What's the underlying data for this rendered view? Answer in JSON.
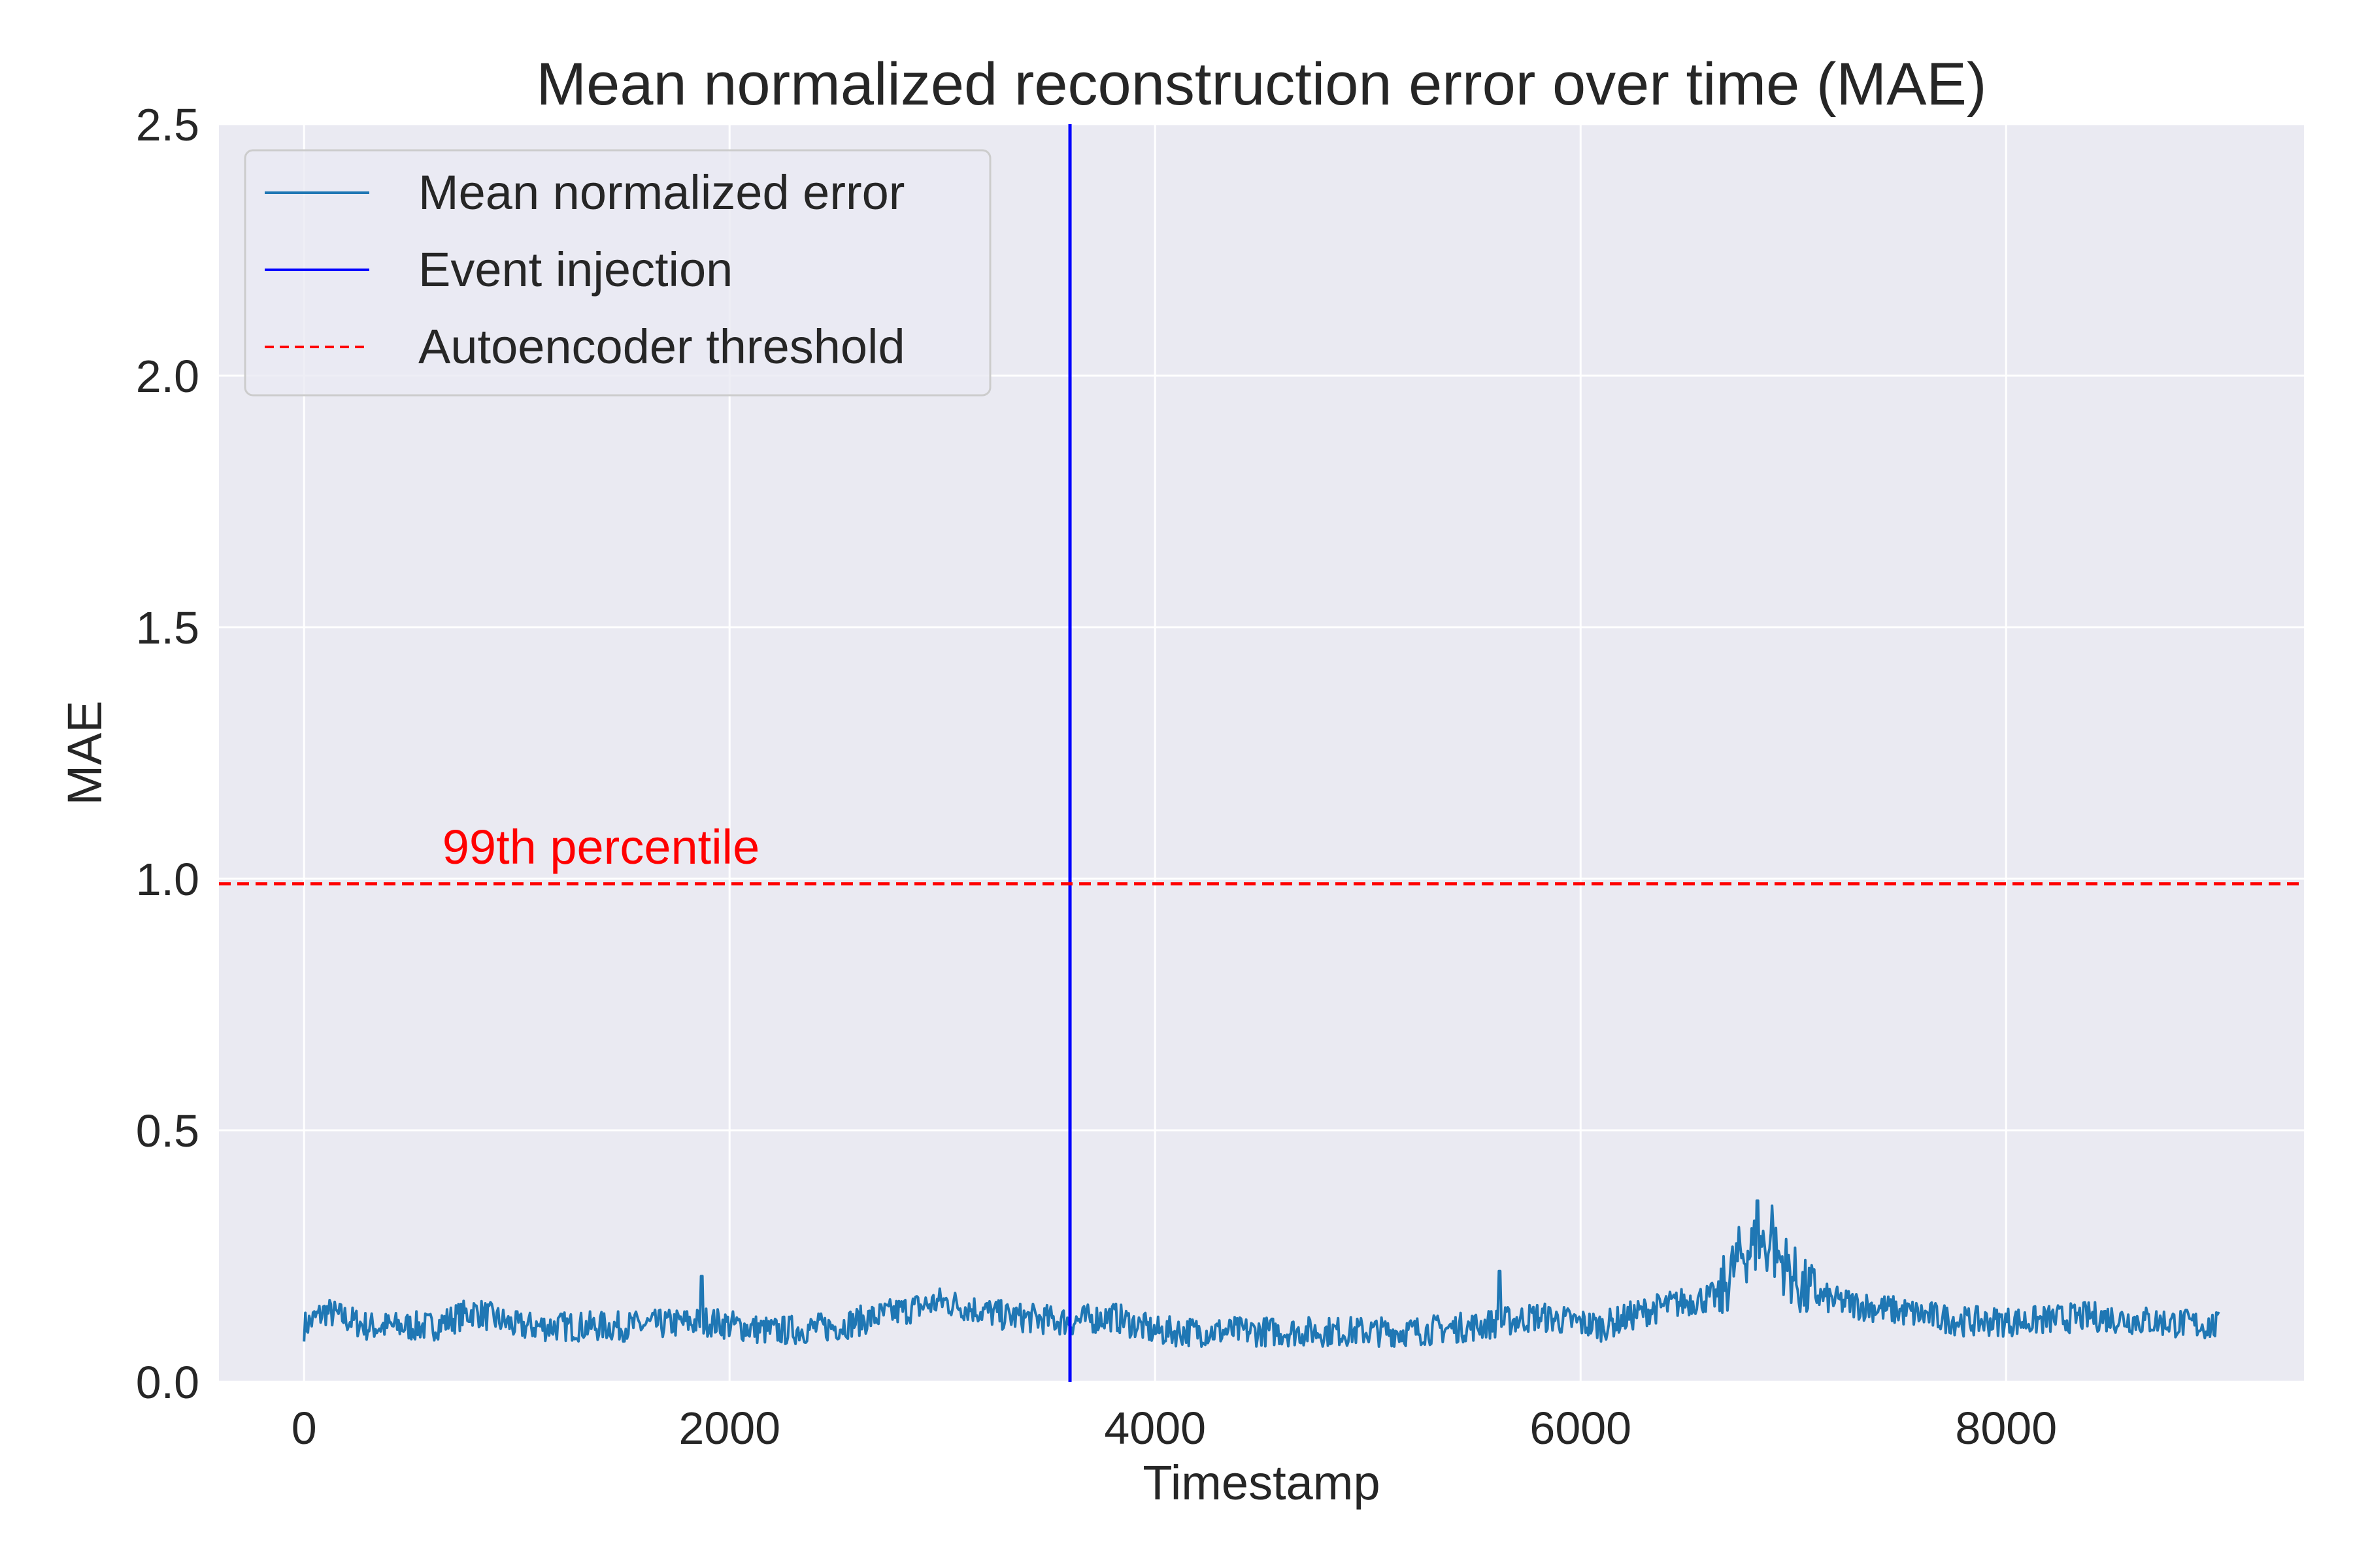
{
  "chart_data": {
    "type": "line",
    "title": "Mean normalized reconstruction error over time (MAE)",
    "xlabel": "Timestamp",
    "ylabel": "MAE",
    "xlim": [
      -400,
      9400
    ],
    "ylim": [
      0,
      2.5
    ],
    "xticks": [
      "0",
      "2000",
      "4000",
      "6000",
      "8000"
    ],
    "xtick_values": [
      0,
      2000,
      4000,
      6000,
      8000
    ],
    "yticks": [
      "0.0",
      "0.5",
      "1.0",
      "1.5",
      "2.0",
      "2.5"
    ],
    "ytick_values": [
      0,
      0.5,
      1.0,
      1.5,
      2.0,
      2.5
    ],
    "grid": true,
    "legend_position": "top-left",
    "series": [
      {
        "name": "Mean normalized error",
        "color": "#1f77b4",
        "x_range": [
          0,
          9000
        ],
        "envelope": {
          "x": [
            0,
            100,
            300,
            600,
            800,
            1000,
            1500,
            1900,
            2200,
            2500,
            2800,
            3000,
            3300,
            3600,
            3800,
            4000,
            4400,
            4800,
            5200,
            5500,
            5800,
            6100,
            6300,
            6500,
            6650,
            6750,
            6850,
            6950,
            7050,
            7200,
            7500,
            7800,
            8100,
            8400,
            8700,
            9000
          ],
          "y": [
            0.11,
            0.14,
            0.11,
            0.11,
            0.14,
            0.11,
            0.11,
            0.12,
            0.1,
            0.11,
            0.14,
            0.16,
            0.13,
            0.12,
            0.13,
            0.1,
            0.1,
            0.1,
            0.1,
            0.11,
            0.13,
            0.11,
            0.14,
            0.16,
            0.17,
            0.25,
            0.28,
            0.24,
            0.18,
            0.16,
            0.14,
            0.12,
            0.12,
            0.13,
            0.12,
            0.11
          ]
        },
        "spikes": [
          {
            "x": 1870,
            "y": 0.21
          },
          {
            "x": 5620,
            "y": 0.22
          },
          {
            "x": 6830,
            "y": 0.36
          },
          {
            "x": 6900,
            "y": 0.35
          }
        ]
      }
    ],
    "lines": [
      {
        "name": "Event injection",
        "orientation": "vertical",
        "x": 3600,
        "color": "#0000ff",
        "style": "solid"
      },
      {
        "name": "Autoencoder threshold",
        "orientation": "horizontal",
        "y": 0.99,
        "color": "#ff0000",
        "style": "dashed"
      }
    ],
    "annotations": [
      {
        "text": "99th percentile",
        "x": 650,
        "y": 1.03,
        "color": "#ff0000"
      }
    ]
  }
}
